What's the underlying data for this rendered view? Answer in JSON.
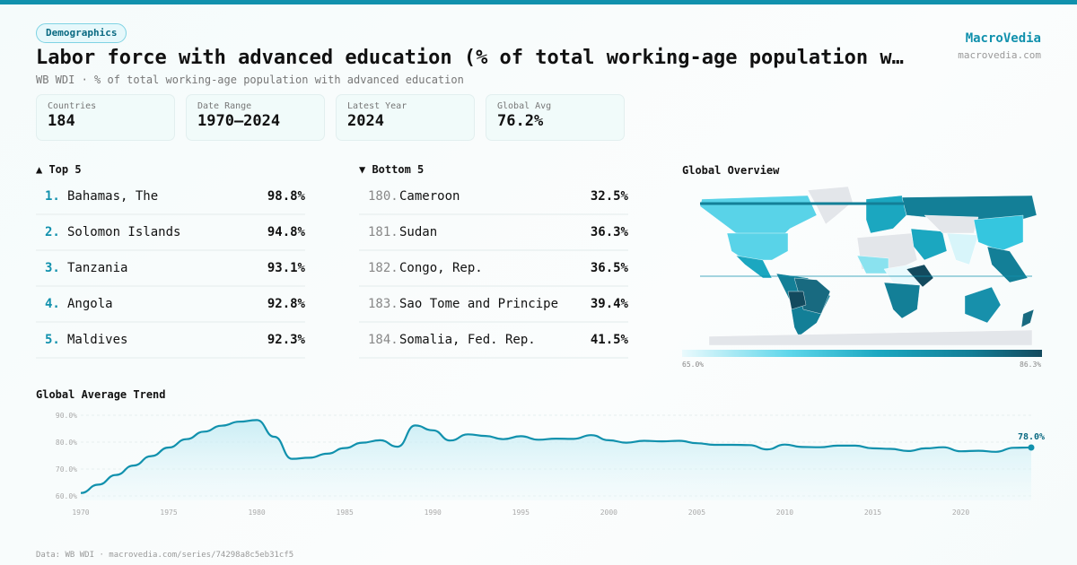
{
  "header": {
    "badge": "Demographics",
    "title": "Labor force with advanced education (% of total working-age population with advanced education)",
    "subtitle": "WB WDI · % of total working-age population with advanced education",
    "brand": "MacroVedia",
    "domain": "macrovedia.com"
  },
  "stats": [
    {
      "label": "Countries",
      "value": "184"
    },
    {
      "label": "Date Range",
      "value": "1970–2024"
    },
    {
      "label": "Latest Year",
      "value": "2024"
    },
    {
      "label": "Global Avg",
      "value": "76.2%"
    }
  ],
  "top": {
    "title": "▲ Top 5",
    "items": [
      {
        "rank": "1.",
        "name": "Bahamas, The",
        "value": "98.8%"
      },
      {
        "rank": "2.",
        "name": "Solomon Islands",
        "value": "94.8%"
      },
      {
        "rank": "3.",
        "name": "Tanzania",
        "value": "93.1%"
      },
      {
        "rank": "4.",
        "name": "Angola",
        "value": "92.8%"
      },
      {
        "rank": "5.",
        "name": "Maldives",
        "value": "92.3%"
      }
    ]
  },
  "bottom": {
    "title": "▼ Bottom 5",
    "items": [
      {
        "rank": "180.",
        "name": "Cameroon",
        "value": "32.5%"
      },
      {
        "rank": "181.",
        "name": "Sudan",
        "value": "36.3%"
      },
      {
        "rank": "182.",
        "name": "Congo, Rep.",
        "value": "36.5%"
      },
      {
        "rank": "183.",
        "name": "Sao Tome and Principe",
        "value": "39.4%"
      },
      {
        "rank": "184.",
        "name": "Somalia, Fed. Rep.",
        "value": "41.5%"
      }
    ]
  },
  "map": {
    "title": "Global Overview",
    "min_label": "65.0%",
    "max_label": "86.3%",
    "colors": [
      "#eafafd",
      "#5dd6ea",
      "#1ba7c0",
      "#137f97",
      "#134a5e"
    ]
  },
  "chart_data": {
    "type": "area",
    "title": "Global Average Trend",
    "xlabel": "",
    "ylabel": "",
    "ylim": [
      58,
      92
    ],
    "yticks": [
      "60.0%",
      "70.0%",
      "80.0%",
      "90.0%"
    ],
    "ytick_values": [
      60,
      70,
      80,
      90
    ],
    "xticks": [
      "1970",
      "1975",
      "1980",
      "1985",
      "1990",
      "1995",
      "2000",
      "2005",
      "2010",
      "2015",
      "2020"
    ],
    "x": [
      1970,
      1971,
      1972,
      1973,
      1974,
      1975,
      1976,
      1977,
      1978,
      1979,
      1980,
      1981,
      1982,
      1983,
      1984,
      1985,
      1986,
      1987,
      1988,
      1989,
      1990,
      1991,
      1992,
      1993,
      1994,
      1995,
      1996,
      1997,
      1998,
      1999,
      2000,
      2001,
      2002,
      2003,
      2004,
      2005,
      2006,
      2007,
      2008,
      2009,
      2010,
      2011,
      2012,
      2013,
      2014,
      2015,
      2016,
      2017,
      2018,
      2019,
      2020,
      2021,
      2022,
      2023,
      2024
    ],
    "values": [
      61.1,
      64.2,
      67.8,
      71.3,
      74.8,
      78.0,
      81.1,
      83.9,
      86.1,
      87.6,
      88.2,
      82.0,
      73.8,
      74.2,
      75.7,
      77.8,
      79.8,
      80.7,
      78.3,
      86.2,
      84.4,
      80.6,
      82.9,
      82.3,
      81.1,
      82.2,
      80.9,
      81.3,
      81.2,
      82.6,
      80.7,
      79.8,
      80.5,
      80.3,
      80.5,
      79.6,
      79.0,
      79.0,
      78.9,
      77.3,
      79.1,
      78.2,
      78.1,
      78.7,
      78.7,
      77.7,
      77.5,
      76.7,
      77.7,
      78.1,
      76.6,
      76.8,
      76.4,
      77.9,
      78.0
    ],
    "last_label": "78.0%",
    "color": "#1191ad",
    "grid": true
  },
  "footer": "Data: WB WDI · macrovedia.com/series/74298a8c5eb31cf5"
}
